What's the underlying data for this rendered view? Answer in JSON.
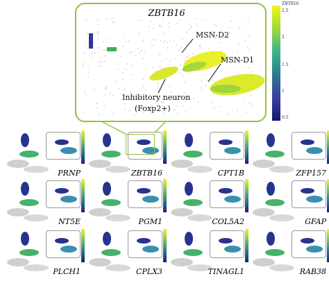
{
  "inset": {
    "gene": "ZBTB16",
    "colorbar_ticks": [
      "2.5",
      "2",
      "1.5",
      "1",
      "0.5"
    ],
    "colorbar_label": "ZBTB16"
  },
  "labels": {
    "msn_d2": "MSN-D2",
    "msn_d1": "MSN-D1",
    "inhib1": "Inhibitory neuron",
    "inhib2": "(Foxp2+)"
  },
  "panels": [
    {
      "gene": "PRNP"
    },
    {
      "gene": "ZBTB16"
    },
    {
      "gene": "CPT1B"
    },
    {
      "gene": "ZFP157"
    },
    {
      "gene": "NT5E"
    },
    {
      "gene": "PGM1"
    },
    {
      "gene": "COL5A2"
    },
    {
      "gene": "GFAP"
    },
    {
      "gene": "PLCH1"
    },
    {
      "gene": "CPLX3"
    },
    {
      "gene": "TINAGL1"
    },
    {
      "gene": "RAB38"
    }
  ]
}
